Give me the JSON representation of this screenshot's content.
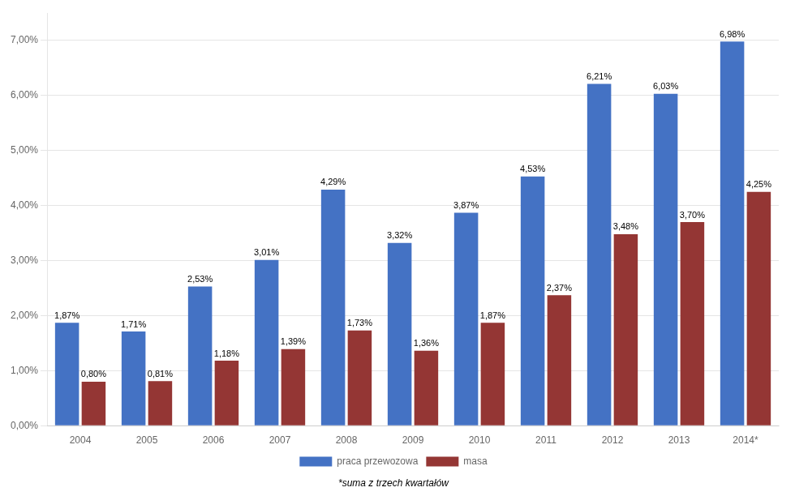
{
  "chart_data": {
    "type": "bar",
    "categories": [
      "2004",
      "2005",
      "2006",
      "2007",
      "2008",
      "2009",
      "2010",
      "2011",
      "2012",
      "2013",
      "2014*"
    ],
    "series": [
      {
        "name": "praca przewozowa",
        "color": "#4472C4",
        "values": [
          1.87,
          1.71,
          2.53,
          3.01,
          4.29,
          3.32,
          3.87,
          4.53,
          6.21,
          6.03,
          6.98
        ],
        "value_labels": [
          "1,87%",
          "1,71%",
          "2,53%",
          "3,01%",
          "4,29%",
          "3,32%",
          "3,87%",
          "4,53%",
          "6,21%",
          "6,03%",
          "6,98%"
        ]
      },
      {
        "name": "masa",
        "color": "#943634",
        "values": [
          0.8,
          0.81,
          1.18,
          1.39,
          1.73,
          1.36,
          1.87,
          2.37,
          3.48,
          3.7,
          4.25
        ],
        "value_labels": [
          "0,80%",
          "0,81%",
          "1,18%",
          "1,39%",
          "1,73%",
          "1,36%",
          "1,87%",
          "2,37%",
          "3,48%",
          "3,70%",
          "4,25%"
        ]
      }
    ],
    "ylim": [
      0,
      7.5
    ],
    "yticks": [
      {
        "value": 0,
        "label": "0,00%"
      },
      {
        "value": 1,
        "label": "1,00%"
      },
      {
        "value": 2,
        "label": "2,00%"
      },
      {
        "value": 3,
        "label": "3,00%"
      },
      {
        "value": 4,
        "label": "4,00%"
      },
      {
        "value": 5,
        "label": "5,00%"
      },
      {
        "value": 6,
        "label": "6,00%"
      },
      {
        "value": 7,
        "label": "7,00%"
      }
    ],
    "grid": true,
    "legend": "bottom",
    "data_labels": true,
    "annotations": [
      "*suma z trzech kwartałów"
    ]
  }
}
